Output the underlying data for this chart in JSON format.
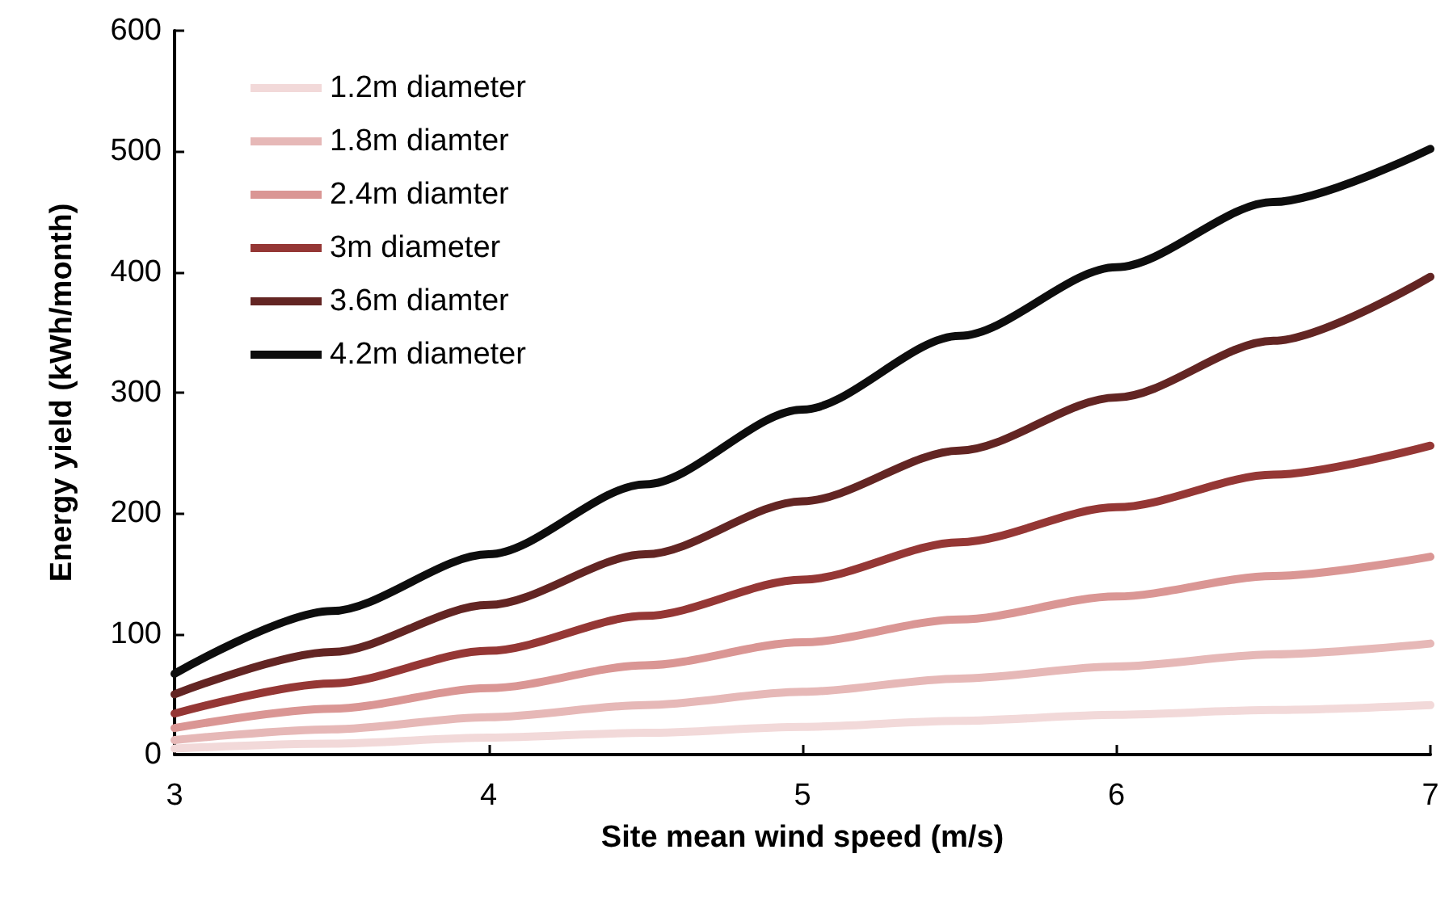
{
  "chart_data": {
    "type": "line",
    "xlabel": "Site mean wind speed (m/s)",
    "ylabel": "Energy yield (kWh/month)",
    "x": [
      3,
      3.5,
      4,
      4.5,
      5,
      5.5,
      6,
      6.5,
      7
    ],
    "series": [
      {
        "name": "1.2m diameter",
        "color": "#f2d9d9",
        "values": [
          5,
          9,
          14,
          18,
          23,
          28,
          33,
          37,
          41
        ]
      },
      {
        "name": "1.8m diamter",
        "color": "#e6b8b7",
        "values": [
          12,
          21,
          31,
          41,
          52,
          63,
          73,
          83,
          92
        ]
      },
      {
        "name": "2.4m diamter",
        "color": "#da9694",
        "values": [
          22,
          38,
          55,
          74,
          93,
          112,
          131,
          148,
          164
        ]
      },
      {
        "name": "3m diameter",
        "color": "#953735",
        "values": [
          34,
          59,
          86,
          115,
          145,
          176,
          205,
          232,
          256
        ]
      },
      {
        "name": "3.6m diamter",
        "color": "#632523",
        "values": [
          50,
          85,
          124,
          166,
          210,
          252,
          296,
          343,
          396
        ]
      },
      {
        "name": "4.2m diameter",
        "color": "#0d0d0d",
        "values": [
          67,
          119,
          166,
          224,
          286,
          347,
          404,
          458,
          502
        ]
      }
    ],
    "xlim": [
      3,
      7
    ],
    "xticks": [
      3,
      4,
      5,
      6,
      7
    ],
    "ylim": [
      0,
      600
    ],
    "yticks": [
      0,
      100,
      200,
      300,
      400,
      500,
      600
    ],
    "grid": false,
    "legend": "top left",
    "marker": "none",
    "line_style": "solid"
  }
}
